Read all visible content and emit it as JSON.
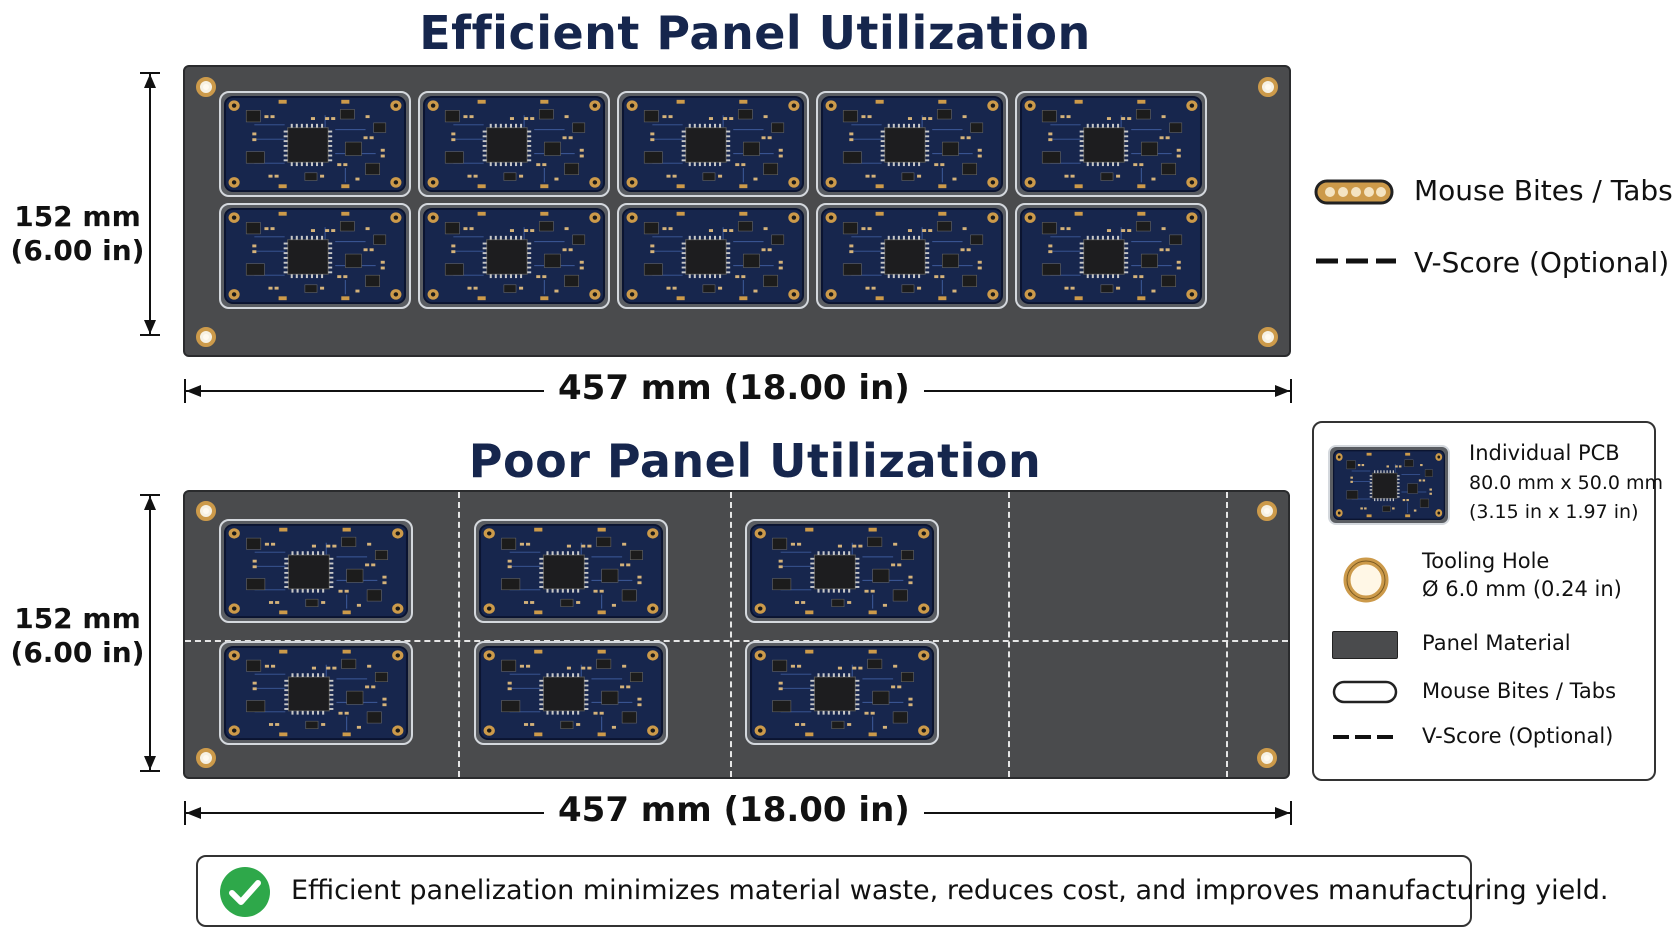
{
  "efficient": {
    "title": "Efficient Panel Utilization",
    "height_label": [
      "152 mm",
      "(6.00 in)"
    ],
    "width_label": "457 mm (18.00 in)",
    "grid": {
      "columns": 5,
      "rows": 2
    }
  },
  "poor": {
    "title": "Poor Panel Utilization",
    "height_label": [
      "152 mm",
      "(6.00 in)"
    ],
    "width_label": "457 mm (18.00 in)",
    "grid": {
      "columns": 3,
      "rows": 2
    }
  },
  "legend_top": [
    {
      "icon": "mouse-bites-icon",
      "label": "Mouse Bites / Tabs"
    },
    {
      "icon": "v-score-icon",
      "label": "V-Score (Optional)"
    }
  ],
  "legend_box": {
    "pcb": {
      "title": "Individual PCB",
      "line2": "80.0 mm x 50.0 mm",
      "line3": "(3.15 in x 1.97 in)"
    },
    "tooling_hole": {
      "title": "Tooling Hole",
      "line2": "Ø 6.0 mm (0.24 in)"
    },
    "panel_material": "Panel Material",
    "mouse_bites": "Mouse Bites / Tabs",
    "v_score": "V-Score (Optional)"
  },
  "footer": {
    "text": "Efficient panelization minimizes material waste, reduces cost, and improves manufacturing yield.",
    "icon": "check-circle-icon"
  },
  "colors": {
    "title": "#16264d",
    "panel": "#4a4b4d",
    "pcb": "#17264d",
    "copper": "#cc9a4a",
    "check": "#2ea84a"
  }
}
